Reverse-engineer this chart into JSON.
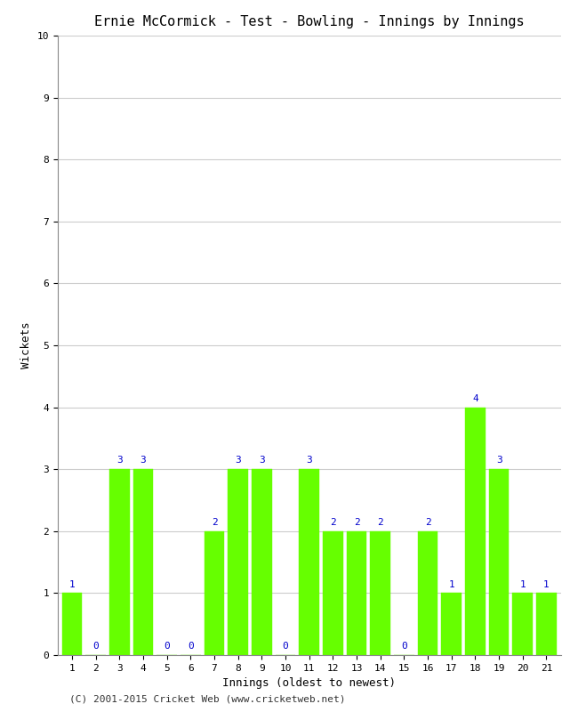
{
  "title": "Ernie McCormick - Test - Bowling - Innings by Innings",
  "xlabel": "Innings (oldest to newest)",
  "ylabel": "Wickets",
  "categories": [
    1,
    2,
    3,
    4,
    5,
    6,
    7,
    8,
    9,
    10,
    11,
    12,
    13,
    14,
    15,
    16,
    17,
    18,
    19,
    20,
    21
  ],
  "values": [
    1,
    0,
    3,
    3,
    0,
    0,
    2,
    3,
    3,
    0,
    3,
    2,
    2,
    2,
    0,
    2,
    1,
    4,
    3,
    1,
    1
  ],
  "bar_color": "#66ff00",
  "label_color": "#0000cc",
  "background_color": "#ffffff",
  "ylim": [
    0,
    10
  ],
  "yticks": [
    0,
    1,
    2,
    3,
    4,
    5,
    6,
    7,
    8,
    9,
    10
  ],
  "title_fontsize": 11,
  "axis_label_fontsize": 9,
  "tick_fontsize": 8,
  "label_fontsize": 8,
  "footer": "(C) 2001-2015 Cricket Web (www.cricketweb.net)",
  "footer_fontsize": 8,
  "bar_width": 0.85
}
